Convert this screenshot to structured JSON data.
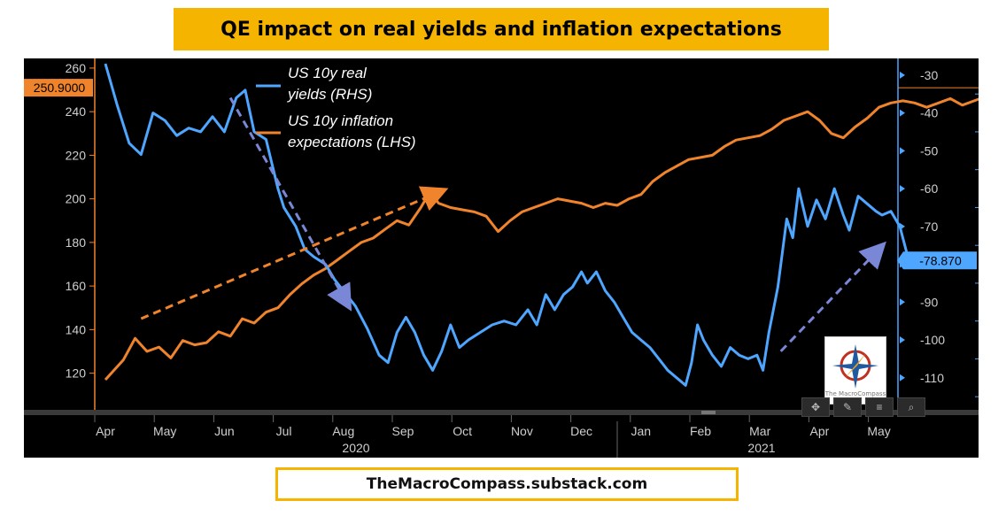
{
  "title": "QE impact on real yields and inflation expectations",
  "footer": "TheMacroCompass.substack.com",
  "colors": {
    "real_yield": "#4ea6ff",
    "inflation": "#f0842c",
    "left_axis": "#f0842c",
    "right_axis": "#4ea6ff",
    "arrow_orange": "#f0842c",
    "arrow_blue": "#7a86d6"
  },
  "logo": {
    "label": "The MacroCompass"
  },
  "toolbar": {
    "icons": [
      "crosshair-icon",
      "pencil-icon",
      "menu-icon",
      "search-icon"
    ]
  },
  "chart_data": {
    "type": "line",
    "title": "QE impact on real yields and inflation expectations",
    "x_months": [
      "Apr",
      "May",
      "Jun",
      "Jul",
      "Aug",
      "Sep",
      "Oct",
      "Nov",
      "Dec",
      "Jan",
      "Feb",
      "Mar",
      "Apr",
      "May"
    ],
    "x_years": [
      "2020",
      "2021"
    ],
    "left_axis": {
      "ticks": [
        "260",
        "240",
        "220",
        "200",
        "180",
        "160",
        "140",
        "120"
      ],
      "ylim": [
        104,
        262
      ]
    },
    "right_axis": {
      "ticks": [
        "-30",
        "-40",
        "-50",
        "-60",
        "-70",
        "-80",
        "-90",
        "-100",
        "-110"
      ],
      "ylim": [
        -118,
        -27
      ]
    },
    "last_value_left": "250.9000",
    "last_value_right": "-78.870",
    "legend": [
      {
        "label_line1": "US 10y real",
        "label_line2": "yields (RHS)"
      },
      {
        "label_line1": "US 10y inflation",
        "label_line2": "expectations (LHS)"
      }
    ],
    "series": [
      {
        "name": "US 10y real yields (RHS)",
        "axis": "right",
        "values": [
          [
            0,
            -27
          ],
          [
            0.2,
            -38
          ],
          [
            0.4,
            -48
          ],
          [
            0.6,
            -51
          ],
          [
            0.8,
            -40
          ],
          [
            1.0,
            -42
          ],
          [
            1.2,
            -46
          ],
          [
            1.4,
            -44
          ],
          [
            1.6,
            -45
          ],
          [
            1.8,
            -41
          ],
          [
            2.0,
            -45
          ],
          [
            2.2,
            -36
          ],
          [
            2.35,
            -34
          ],
          [
            2.5,
            -45
          ],
          [
            2.7,
            -47
          ],
          [
            2.9,
            -60
          ],
          [
            3.0,
            -65
          ],
          [
            3.2,
            -70
          ],
          [
            3.35,
            -76
          ],
          [
            3.5,
            -78
          ],
          [
            3.7,
            -80
          ],
          [
            3.85,
            -84
          ],
          [
            4.0,
            -87
          ],
          [
            4.2,
            -91
          ],
          [
            4.4,
            -97
          ],
          [
            4.6,
            -104
          ],
          [
            4.75,
            -106
          ],
          [
            4.9,
            -98
          ],
          [
            5.05,
            -94
          ],
          [
            5.2,
            -98
          ],
          [
            5.35,
            -104
          ],
          [
            5.5,
            -108
          ],
          [
            5.65,
            -103
          ],
          [
            5.8,
            -96
          ],
          [
            5.95,
            -102
          ],
          [
            6.1,
            -100
          ],
          [
            6.3,
            -98
          ],
          [
            6.5,
            -96
          ],
          [
            6.7,
            -95
          ],
          [
            6.9,
            -96
          ],
          [
            7.1,
            -92
          ],
          [
            7.25,
            -96
          ],
          [
            7.4,
            -88
          ],
          [
            7.55,
            -92
          ],
          [
            7.7,
            -88
          ],
          [
            7.85,
            -86
          ],
          [
            8.0,
            -82
          ],
          [
            8.1,
            -85
          ],
          [
            8.25,
            -82
          ],
          [
            8.4,
            -87
          ],
          [
            8.55,
            -90
          ],
          [
            8.7,
            -94
          ],
          [
            8.85,
            -98
          ],
          [
            9.0,
            -100
          ],
          [
            9.15,
            -102
          ],
          [
            9.3,
            -105
          ],
          [
            9.45,
            -108
          ],
          [
            9.6,
            -110
          ],
          [
            9.75,
            -112
          ],
          [
            9.85,
            -106
          ],
          [
            9.95,
            -96
          ],
          [
            10.05,
            -100
          ],
          [
            10.2,
            -104
          ],
          [
            10.35,
            -107
          ],
          [
            10.5,
            -102
          ],
          [
            10.65,
            -104
          ],
          [
            10.8,
            -105
          ],
          [
            10.95,
            -104
          ],
          [
            11.05,
            -108
          ],
          [
            11.15,
            -98
          ],
          [
            11.3,
            -86
          ],
          [
            11.45,
            -68
          ],
          [
            11.55,
            -73
          ],
          [
            11.65,
            -60
          ],
          [
            11.8,
            -70
          ],
          [
            11.95,
            -63
          ],
          [
            12.1,
            -68
          ],
          [
            12.25,
            -60
          ],
          [
            12.4,
            -67
          ],
          [
            12.5,
            -71
          ],
          [
            12.65,
            -62
          ],
          [
            12.8,
            -64
          ],
          [
            12.95,
            -66
          ],
          [
            13.05,
            -67
          ],
          [
            13.2,
            -66
          ],
          [
            13.35,
            -70
          ],
          [
            13.5,
            -79
          ],
          [
            13.55,
            -79
          ]
        ]
      },
      {
        "name": "US 10y inflation expectations (LHS)",
        "axis": "left",
        "values": [
          [
            0,
            117
          ],
          [
            0.3,
            126
          ],
          [
            0.5,
            136
          ],
          [
            0.7,
            130
          ],
          [
            0.9,
            132
          ],
          [
            1.1,
            127
          ],
          [
            1.3,
            135
          ],
          [
            1.5,
            133
          ],
          [
            1.7,
            134
          ],
          [
            1.9,
            139
          ],
          [
            2.1,
            137
          ],
          [
            2.3,
            145
          ],
          [
            2.5,
            143
          ],
          [
            2.7,
            148
          ],
          [
            2.9,
            150
          ],
          [
            3.1,
            156
          ],
          [
            3.3,
            161
          ],
          [
            3.5,
            165
          ],
          [
            3.7,
            168
          ],
          [
            3.9,
            172
          ],
          [
            4.1,
            176
          ],
          [
            4.3,
            180
          ],
          [
            4.5,
            182
          ],
          [
            4.7,
            186
          ],
          [
            4.9,
            190
          ],
          [
            5.1,
            188
          ],
          [
            5.3,
            196
          ],
          [
            5.45,
            203
          ],
          [
            5.6,
            198
          ],
          [
            5.8,
            196
          ],
          [
            6.0,
            195
          ],
          [
            6.2,
            194
          ],
          [
            6.4,
            192
          ],
          [
            6.6,
            185
          ],
          [
            6.8,
            190
          ],
          [
            7.0,
            194
          ],
          [
            7.2,
            196
          ],
          [
            7.4,
            198
          ],
          [
            7.6,
            200
          ],
          [
            7.8,
            199
          ],
          [
            8.0,
            198
          ],
          [
            8.2,
            196
          ],
          [
            8.4,
            198
          ],
          [
            8.6,
            197
          ],
          [
            8.8,
            200
          ],
          [
            9.0,
            202
          ],
          [
            9.2,
            208
          ],
          [
            9.4,
            212
          ],
          [
            9.6,
            215
          ],
          [
            9.8,
            218
          ],
          [
            10.0,
            219
          ],
          [
            10.2,
            220
          ],
          [
            10.4,
            224
          ],
          [
            10.6,
            227
          ],
          [
            10.8,
            228
          ],
          [
            11.0,
            229
          ],
          [
            11.2,
            232
          ],
          [
            11.4,
            236
          ],
          [
            11.6,
            238
          ],
          [
            11.8,
            240
          ],
          [
            12.0,
            236
          ],
          [
            12.2,
            230
          ],
          [
            12.4,
            228
          ],
          [
            12.6,
            233
          ],
          [
            12.8,
            237
          ],
          [
            13.0,
            242
          ],
          [
            13.2,
            244
          ],
          [
            13.4,
            245
          ],
          [
            13.6,
            244
          ],
          [
            13.8,
            242
          ],
          [
            14.0,
            244
          ],
          [
            14.2,
            246
          ],
          [
            14.4,
            243
          ],
          [
            14.6,
            245
          ],
          [
            14.8,
            247
          ],
          [
            15.0,
            249
          ],
          [
            15.2,
            251
          ],
          [
            15.35,
            252
          ],
          [
            15.45,
            251
          ]
        ]
      }
    ],
    "annotations": [
      {
        "type": "arrow",
        "series": "inflation",
        "from": [
          0.6,
          145
        ],
        "to": [
          5.6,
          203
        ]
      },
      {
        "type": "arrow",
        "series": "real_yields",
        "from": [
          2.1,
          -36
        ],
        "to": [
          4.05,
          -90
        ]
      },
      {
        "type": "arrow",
        "series": "real_yields",
        "from": [
          11.35,
          -103
        ],
        "to": [
          13.0,
          -76
        ]
      }
    ]
  }
}
